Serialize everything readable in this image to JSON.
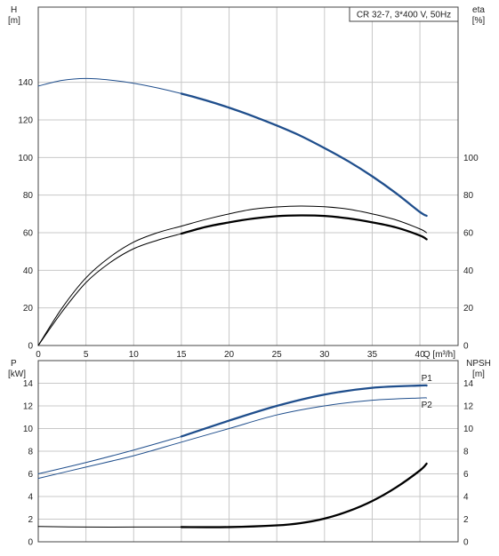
{
  "chart_data": [
    {
      "type": "line",
      "title": "CR 32-7, 3*400 V, 50Hz",
      "x_label": "Q [m³/h]",
      "x_ticks": [
        "0",
        "5",
        "10",
        "15",
        "20",
        "25",
        "30",
        "35",
        "40"
      ],
      "xlim": [
        0,
        44
      ],
      "y_left_label": [
        "H",
        "[m]"
      ],
      "y_left_ticks": [
        "0",
        "20",
        "40",
        "60",
        "80",
        "100",
        "120",
        "140"
      ],
      "ylim_left": [
        0,
        180
      ],
      "y_right_label": [
        "eta",
        "[%]"
      ],
      "y_right_ticks": [
        "0",
        "20",
        "40",
        "60",
        "80",
        "100"
      ],
      "ylim_right": [
        0,
        180
      ],
      "grid": true,
      "colors": {
        "head": "#1f4e8c",
        "efficiency": "#000000",
        "grid": "#c8c8c8"
      },
      "series": [
        {
          "axis": "left",
          "style": "thin",
          "x": [
            0,
            2.5,
            5,
            7.5,
            10,
            12.5,
            15
          ],
          "y": [
            138,
            141,
            142,
            141.2,
            139.5,
            137,
            134
          ]
        },
        {
          "axis": "left",
          "style": "thick",
          "x": [
            15,
            17.5,
            20,
            22.5,
            25,
            27.5,
            30,
            32.5,
            35,
            37.5,
            40,
            40.7
          ],
          "y": [
            134,
            130.5,
            126.5,
            122,
            117,
            111.5,
            105,
            98,
            90,
            81,
            71,
            69
          ]
        },
        {
          "axis": "right",
          "style": "thin",
          "x": [
            0,
            2.5,
            5,
            7.5,
            10,
            12.5,
            15,
            17.5,
            20,
            22.5,
            25,
            27.5,
            30,
            32.5,
            35,
            37.5,
            40,
            40.7
          ],
          "y": [
            0,
            20,
            36,
            47,
            55,
            60,
            63.5,
            67,
            70,
            72.5,
            73.7,
            74.2,
            73.8,
            72.5,
            70,
            66.8,
            62,
            60
          ]
        },
        {
          "axis": "right",
          "style": "thin",
          "x": [
            0,
            2.5,
            5,
            7.5,
            10,
            12.5,
            15
          ],
          "y": [
            0,
            18,
            33.5,
            44,
            51.5,
            56,
            59.5
          ]
        },
        {
          "axis": "right",
          "style": "thick",
          "x": [
            15,
            17.5,
            20,
            22.5,
            25,
            27.5,
            30,
            32.5,
            35,
            37.5,
            40,
            40.7
          ],
          "y": [
            59.5,
            63,
            65.5,
            67.5,
            68.8,
            69.2,
            68.9,
            67.6,
            65.5,
            62.8,
            58.5,
            56.5
          ]
        }
      ]
    },
    {
      "type": "line",
      "x_ticks": [],
      "xlim": [
        0,
        44
      ],
      "y_left_label": [
        "P",
        "[kW]"
      ],
      "y_left_ticks": [
        "0",
        "2",
        "4",
        "6",
        "8",
        "10",
        "12",
        "14"
      ],
      "ylim_left": [
        0,
        16
      ],
      "y_right_label": [
        "NPSH",
        "[m]"
      ],
      "y_right_ticks": [
        "0",
        "2",
        "4",
        "6",
        "8",
        "10",
        "12",
        "14"
      ],
      "ylim_right": [
        0,
        16
      ],
      "grid": true,
      "colors": {
        "power": "#1f4e8c",
        "npsh": "#000000",
        "grid": "#c8c8c8"
      },
      "series": [
        {
          "name": "P1",
          "axis": "left",
          "style": "thin",
          "x": [
            0,
            5,
            10,
            15
          ],
          "y": [
            6,
            7,
            8.1,
            9.3
          ]
        },
        {
          "name": "P1",
          "axis": "left",
          "style": "thick",
          "x": [
            15,
            20,
            25,
            30,
            35,
            40,
            40.7
          ],
          "y": [
            9.3,
            10.7,
            12,
            13,
            13.6,
            13.8,
            13.8
          ]
        },
        {
          "name": "P2",
          "axis": "left",
          "style": "thin",
          "x": [
            0,
            5,
            10,
            15,
            20,
            25,
            30,
            35,
            40,
            40.7
          ],
          "y": [
            5.6,
            6.6,
            7.6,
            8.8,
            10,
            11.2,
            12,
            12.5,
            12.7,
            12.7
          ]
        },
        {
          "axis": "right",
          "style": "thin",
          "x": [
            0,
            5,
            10,
            15
          ],
          "y": [
            1.35,
            1.3,
            1.3,
            1.3
          ]
        },
        {
          "axis": "right",
          "style": "thick",
          "x": [
            15,
            20,
            25,
            27.5,
            30,
            32.5,
            35,
            37.5,
            40,
            40.7
          ],
          "y": [
            1.3,
            1.3,
            1.45,
            1.65,
            2.05,
            2.7,
            3.6,
            4.8,
            6.3,
            6.9
          ]
        }
      ]
    }
  ]
}
